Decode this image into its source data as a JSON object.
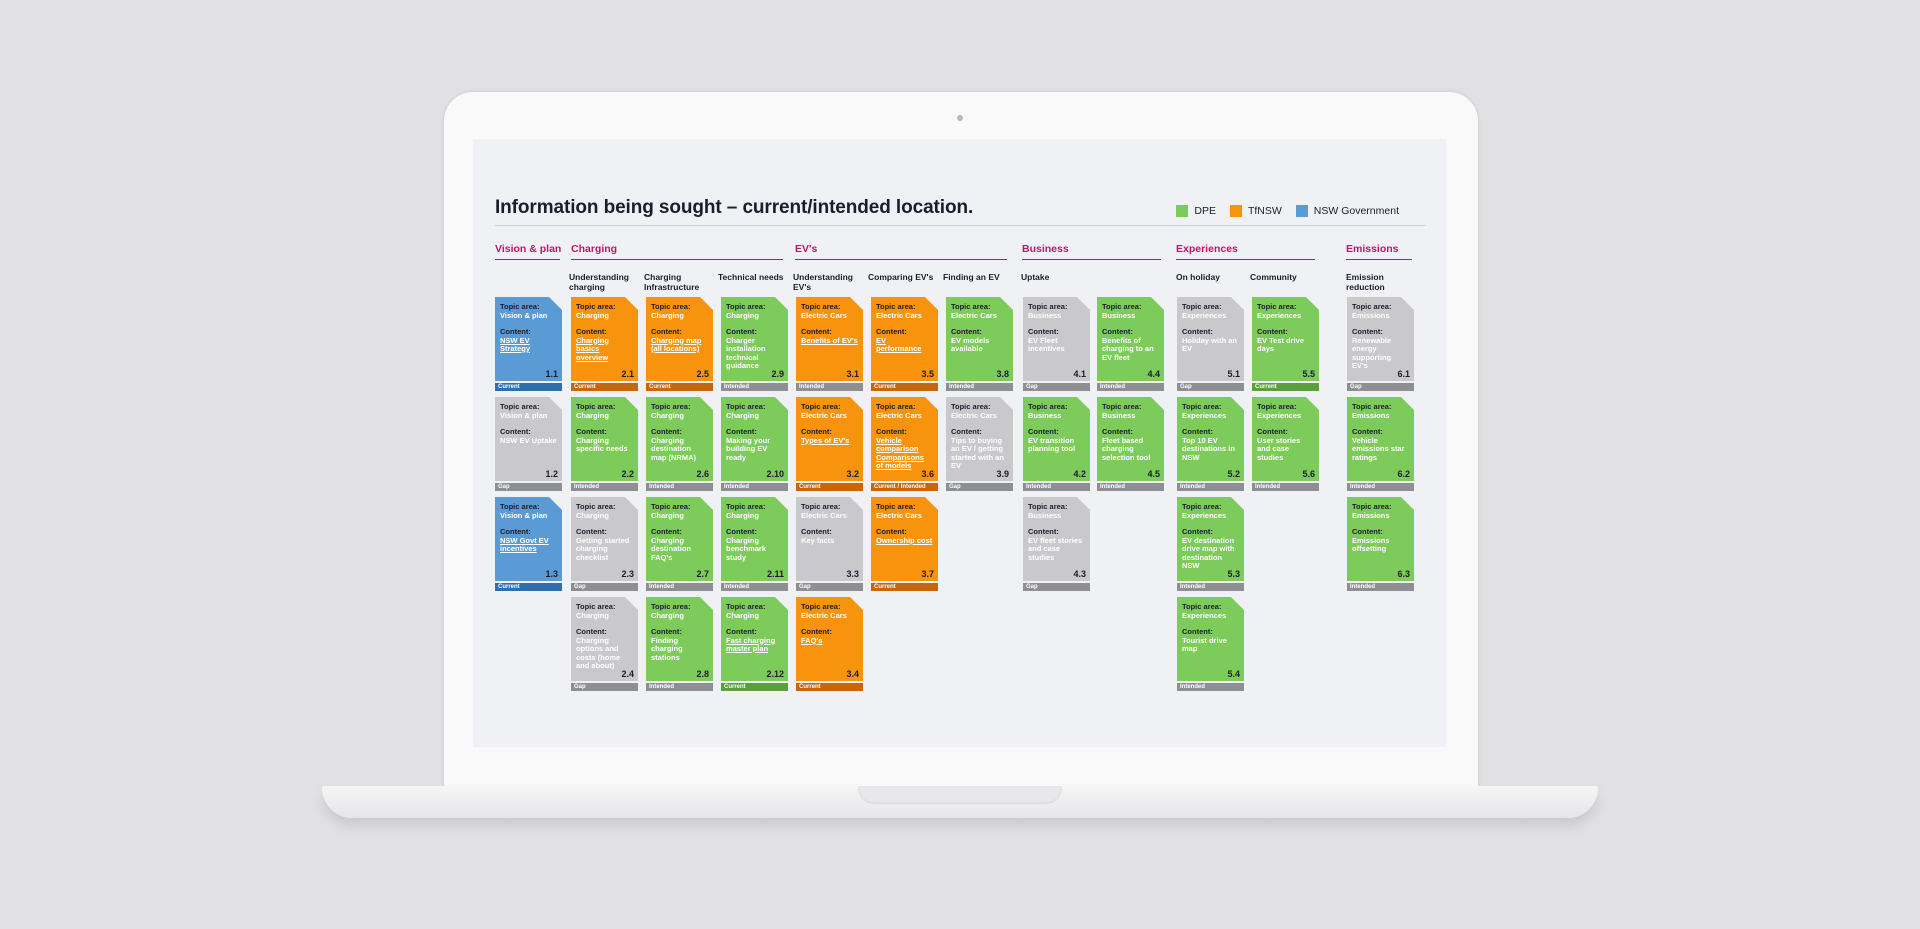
{
  "page": {
    "title": "Information being sought – current/intended location."
  },
  "legend": [
    {
      "label": "DPE",
      "color": "#7dcb5a"
    },
    {
      "label": "TfNSW",
      "color": "#f7930c"
    },
    {
      "label": "NSW Government",
      "color": "#5b9bd5"
    }
  ],
  "labels": {
    "topic": "Topic area:",
    "content": "Content:"
  },
  "sections": [
    {
      "id": "vision",
      "title": "Vision & plan"
    },
    {
      "id": "charging",
      "title": "Charging"
    },
    {
      "id": "evs",
      "title": "EV's"
    },
    {
      "id": "business",
      "title": "Business"
    },
    {
      "id": "experiences",
      "title": "Experiences"
    },
    {
      "id": "emissions",
      "title": "Emissions"
    }
  ],
  "columns": [
    {
      "id": "c1",
      "heading": ""
    },
    {
      "id": "c2",
      "heading": "Understanding charging"
    },
    {
      "id": "c3",
      "heading": "Charging Infrastructure"
    },
    {
      "id": "c4",
      "heading": "Technical needs"
    },
    {
      "id": "c5",
      "heading": "Understanding EV's"
    },
    {
      "id": "c6",
      "heading": "Comparing EV's"
    },
    {
      "id": "c7",
      "heading": "Finding an EV"
    },
    {
      "id": "c8",
      "heading": "Uptake"
    },
    {
      "id": "c9",
      "heading": ""
    },
    {
      "id": "c10",
      "heading": "On holiday"
    },
    {
      "id": "c11",
      "heading": "Community"
    },
    {
      "id": "c12",
      "heading": "Emission reduction"
    }
  ],
  "cards": [
    {
      "col": 0,
      "row": 0,
      "color": "blue",
      "topic": "Vision & plan",
      "content": "NSW EV Strategy",
      "link": true,
      "num": "1.1",
      "status": "Current",
      "status_style": "current-blue"
    },
    {
      "col": 0,
      "row": 1,
      "color": "grey",
      "topic": "Vision & plan",
      "content": "NSW EV Uptake",
      "link": false,
      "num": "1.2",
      "status": "Gap",
      "status_style": "gap"
    },
    {
      "col": 0,
      "row": 2,
      "color": "blue",
      "topic": "Vision & plan",
      "content": "NSW Govt EV incentives",
      "link": true,
      "num": "1.3",
      "status": "Current",
      "status_style": "current-blue"
    },
    {
      "col": 1,
      "row": 0,
      "color": "orange",
      "topic": "Charging",
      "content": "Charging basics overview",
      "link": true,
      "num": "2.1",
      "status": "Current",
      "status_style": "current-orange"
    },
    {
      "col": 1,
      "row": 1,
      "color": "green",
      "topic": "Charging",
      "content": "Charging specific needs",
      "link": false,
      "num": "2.2",
      "status": "Intended",
      "status_style": "intended"
    },
    {
      "col": 1,
      "row": 2,
      "color": "grey",
      "topic": "Charging",
      "content": "Getting started charging checklist",
      "link": false,
      "num": "2.3",
      "status": "Gap",
      "status_style": "gap"
    },
    {
      "col": 1,
      "row": 3,
      "color": "grey",
      "topic": "Charging",
      "content": "Charging options and costs (home and about)",
      "link": false,
      "num": "2.4",
      "status": "Gap",
      "status_style": "gap"
    },
    {
      "col": 2,
      "row": 0,
      "color": "orange",
      "topic": "Charging",
      "content": "Charging map (all locations)",
      "link": true,
      "num": "2.5",
      "status": "Current",
      "status_style": "current-orange"
    },
    {
      "col": 2,
      "row": 1,
      "color": "green",
      "topic": "Charging",
      "content": "Charging destination map (NRMA)",
      "link": false,
      "num": "2.6",
      "status": "Intended",
      "status_style": "intended"
    },
    {
      "col": 2,
      "row": 2,
      "color": "green",
      "topic": "Charging",
      "content": "Charging destination FAQ's",
      "link": false,
      "num": "2.7",
      "status": "Intended",
      "status_style": "intended"
    },
    {
      "col": 2,
      "row": 3,
      "color": "green",
      "topic": "Charging",
      "content": "Finding charging stations",
      "link": false,
      "num": "2.8",
      "status": "Intended",
      "status_style": "intended"
    },
    {
      "col": 3,
      "row": 0,
      "color": "green",
      "topic": "Charging",
      "content": "Charger installation technical guidance",
      "link": false,
      "num": "2.9",
      "status": "Intended",
      "status_style": "intended"
    },
    {
      "col": 3,
      "row": 1,
      "color": "green",
      "topic": "Charging",
      "content": "Making your building EV ready",
      "link": false,
      "num": "2.10",
      "status": "Intended",
      "status_style": "intended"
    },
    {
      "col": 3,
      "row": 2,
      "color": "green",
      "topic": "Charging",
      "content": "Charging benchmark study",
      "link": false,
      "num": "2.11",
      "status": "Intended",
      "status_style": "intended"
    },
    {
      "col": 3,
      "row": 3,
      "color": "green",
      "topic": "Charging",
      "content": "Fast charging master plan",
      "link": true,
      "num": "2.12",
      "status": "Current",
      "status_style": "current-green"
    },
    {
      "col": 4,
      "row": 0,
      "color": "orange",
      "topic": "Electric Cars",
      "content": "Benefits of EV's",
      "link": true,
      "num": "3.1",
      "status": "Intended",
      "status_style": "intended"
    },
    {
      "col": 4,
      "row": 1,
      "color": "orange",
      "topic": "Electric Cars",
      "content": "Types of EV's",
      "link": true,
      "num": "3.2",
      "status": "Current",
      "status_style": "current-orange"
    },
    {
      "col": 4,
      "row": 2,
      "color": "grey",
      "topic": "Electric Cars",
      "content": "Key facts",
      "link": false,
      "num": "3.3",
      "status": "Gap",
      "status_style": "gap"
    },
    {
      "col": 4,
      "row": 3,
      "color": "orange",
      "topic": "Electric Cars",
      "content": "FAQ's",
      "link": true,
      "num": "3.4",
      "status": "Current",
      "status_style": "current-orange"
    },
    {
      "col": 5,
      "row": 0,
      "color": "orange",
      "topic": "Electric Cars",
      "content": "EV performance",
      "link": true,
      "num": "3.5",
      "status": "Current",
      "status_style": "current-orange"
    },
    {
      "col": 5,
      "row": 1,
      "color": "orange",
      "topic": "Electric Cars",
      "content": "Vehicle comparison Comparisons of models",
      "link": true,
      "num": "3.6",
      "status": "Current / Intended",
      "status_style": "current-orange"
    },
    {
      "col": 5,
      "row": 2,
      "color": "orange",
      "topic": "Electric Cars",
      "content": "Ownership cost",
      "link": true,
      "num": "3.7",
      "status": "Current",
      "status_style": "current-orange"
    },
    {
      "col": 6,
      "row": 0,
      "color": "green",
      "topic": "Electric Cars",
      "content": "EV models available",
      "link": false,
      "num": "3.8",
      "status": "Intended",
      "status_style": "intended"
    },
    {
      "col": 6,
      "row": 1,
      "color": "grey",
      "topic": "Electric Cars",
      "content": "Tips to buying an EV / getting started with an EV",
      "link": false,
      "num": "3.9",
      "status": "Gap",
      "status_style": "gap"
    },
    {
      "col": 7,
      "row": 0,
      "color": "grey",
      "topic": "Business",
      "content": "EV Fleet incentives",
      "link": false,
      "num": "4.1",
      "status": "Gap",
      "status_style": "gap"
    },
    {
      "col": 7,
      "row": 1,
      "color": "green",
      "topic": "Business",
      "content": "EV transition planning tool",
      "link": false,
      "num": "4.2",
      "status": "Intended",
      "status_style": "intended"
    },
    {
      "col": 7,
      "row": 2,
      "color": "grey",
      "topic": "Business",
      "content": "EV fleet stories and case studies",
      "link": false,
      "num": "4.3",
      "status": "Gap",
      "status_style": "gap"
    },
    {
      "col": 8,
      "row": 0,
      "color": "green",
      "topic": "Business",
      "content": "Benefits of charging to an EV fleet",
      "link": false,
      "num": "4.4",
      "status": "Intended",
      "status_style": "intended"
    },
    {
      "col": 8,
      "row": 1,
      "color": "green",
      "topic": "Business",
      "content": "Fleet based charging selection tool",
      "link": false,
      "num": "4.5",
      "status": "Intended",
      "status_style": "intended"
    },
    {
      "col": 9,
      "row": 0,
      "color": "grey",
      "topic": "Experiences",
      "content": "Holiday with an EV",
      "link": false,
      "num": "5.1",
      "status": "Gap",
      "status_style": "gap"
    },
    {
      "col": 9,
      "row": 1,
      "color": "green",
      "topic": "Experiences",
      "content": "Top 10 EV destinations in NSW",
      "link": false,
      "num": "5.2",
      "status": "Intended",
      "status_style": "intended"
    },
    {
      "col": 9,
      "row": 2,
      "color": "green",
      "topic": "Experiences",
      "content": "EV destination drive map with destination NSW",
      "link": false,
      "num": "5.3",
      "status": "Intended",
      "status_style": "intended"
    },
    {
      "col": 9,
      "row": 3,
      "color": "green",
      "topic": "Experiences",
      "content": "Tourist drive map",
      "link": false,
      "num": "5.4",
      "status": "Intended",
      "status_style": "intended"
    },
    {
      "col": 10,
      "row": 0,
      "color": "green",
      "topic": "Experiences",
      "content": "EV Test drive days",
      "link": false,
      "num": "5.5",
      "status": "Current",
      "status_style": "current-green"
    },
    {
      "col": 10,
      "row": 1,
      "color": "green",
      "topic": "Experiences",
      "content": "User stories and case studies",
      "link": false,
      "num": "5.6",
      "status": "Intended",
      "status_style": "intended"
    },
    {
      "col": 11,
      "row": 0,
      "color": "grey",
      "topic": "Emissions",
      "content": "Renewable energy supporting EV's",
      "link": false,
      "num": "6.1",
      "status": "Gap",
      "status_style": "gap"
    },
    {
      "col": 11,
      "row": 1,
      "color": "green",
      "topic": "Emissions",
      "content": "Vehicle emissions star ratings",
      "link": false,
      "num": "6.2",
      "status": "Intended",
      "status_style": "intended"
    },
    {
      "col": 11,
      "row": 2,
      "color": "green",
      "topic": "Emissions",
      "content": "Emissions offsetting",
      "link": false,
      "num": "6.3",
      "status": "Intended",
      "status_style": "intended"
    }
  ]
}
